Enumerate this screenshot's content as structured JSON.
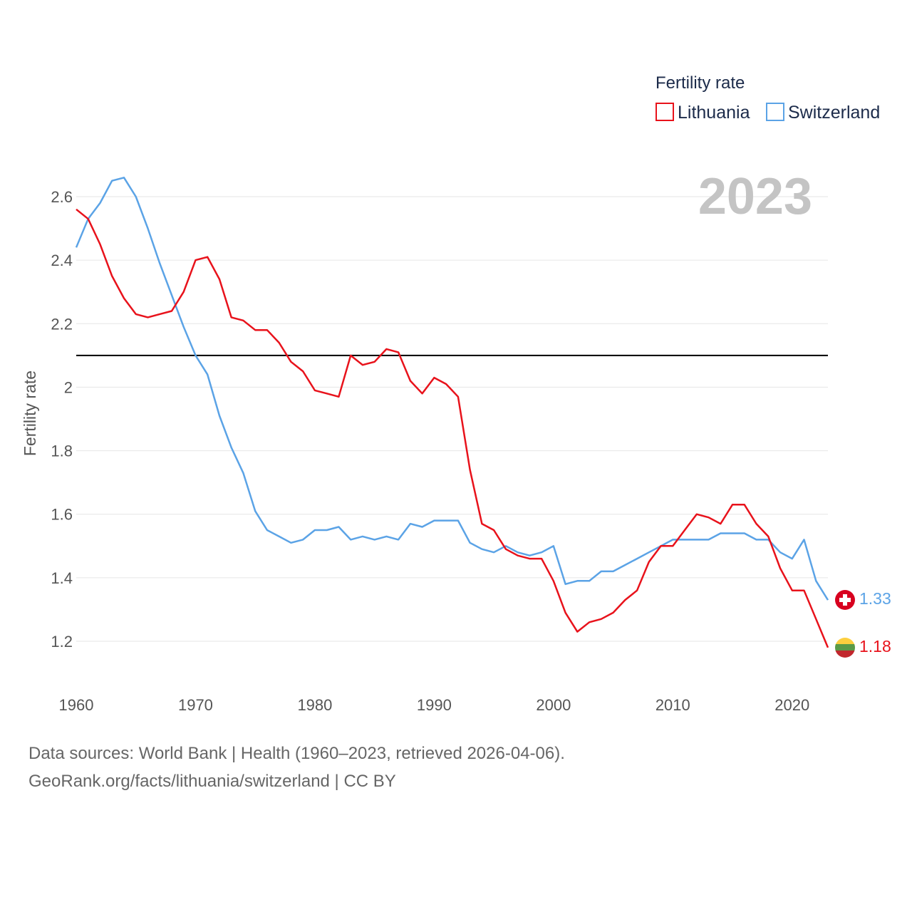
{
  "chart_data": {
    "type": "line",
    "year_label": "2023",
    "legend_title": "Fertility rate",
    "ylabel": "Fertility rate",
    "xlabel": "",
    "xlim": [
      1960,
      2023
    ],
    "ylim": [
      1.1,
      2.7
    ],
    "x_ticks": [
      {
        "value": 1960,
        "label": "1960"
      },
      {
        "value": 1970,
        "label": "1970"
      },
      {
        "value": 1980,
        "label": "1980"
      },
      {
        "value": 1990,
        "label": "1990"
      },
      {
        "value": 2000,
        "label": "2000"
      },
      {
        "value": 2010,
        "label": "2010"
      },
      {
        "value": 2020,
        "label": "2020"
      }
    ],
    "y_ticks": [
      {
        "value": 1.2,
        "label": "1.2"
      },
      {
        "value": 1.4,
        "label": "1.4"
      },
      {
        "value": 1.6,
        "label": "1.6"
      },
      {
        "value": 1.8,
        "label": "1.8"
      },
      {
        "value": 2.0,
        "label": "2"
      },
      {
        "value": 2.2,
        "label": "2.2"
      },
      {
        "value": 2.4,
        "label": "2.4"
      },
      {
        "value": 2.6,
        "label": "2.6"
      }
    ],
    "reference_line": 2.1,
    "x": [
      1960,
      1961,
      1962,
      1963,
      1964,
      1965,
      1966,
      1967,
      1968,
      1969,
      1970,
      1971,
      1972,
      1973,
      1974,
      1975,
      1976,
      1977,
      1978,
      1979,
      1980,
      1981,
      1982,
      1983,
      1984,
      1985,
      1986,
      1987,
      1988,
      1989,
      1990,
      1991,
      1992,
      1993,
      1994,
      1995,
      1996,
      1997,
      1998,
      1999,
      2000,
      2001,
      2002,
      2003,
      2004,
      2005,
      2006,
      2007,
      2008,
      2009,
      2010,
      2011,
      2012,
      2013,
      2014,
      2015,
      2016,
      2017,
      2018,
      2019,
      2020,
      2021,
      2022,
      2023
    ],
    "series": [
      {
        "name": "Lithuania",
        "color": "#e8121b",
        "flag": "lithuania-flag",
        "end_label": "1.18",
        "values": [
          2.56,
          2.53,
          2.45,
          2.35,
          2.28,
          2.23,
          2.22,
          2.23,
          2.24,
          2.3,
          2.4,
          2.41,
          2.34,
          2.22,
          2.21,
          2.18,
          2.18,
          2.14,
          2.08,
          2.05,
          1.99,
          1.98,
          1.97,
          2.1,
          2.07,
          2.08,
          2.12,
          2.11,
          2.02,
          1.98,
          2.03,
          2.01,
          1.97,
          1.74,
          1.57,
          1.55,
          1.49,
          1.47,
          1.46,
          1.46,
          1.39,
          1.29,
          1.23,
          1.26,
          1.27,
          1.29,
          1.33,
          1.36,
          1.45,
          1.5,
          1.5,
          1.55,
          1.6,
          1.59,
          1.57,
          1.63,
          1.63,
          1.57,
          1.53,
          1.43,
          1.36,
          1.36,
          1.27,
          1.18
        ]
      },
      {
        "name": "Switzerland",
        "color": "#5ba3e6",
        "flag": "switzerland-flag",
        "end_label": "1.33",
        "values": [
          2.44,
          2.53,
          2.58,
          2.65,
          2.66,
          2.6,
          2.5,
          2.39,
          2.29,
          2.19,
          2.1,
          2.04,
          1.91,
          1.81,
          1.73,
          1.61,
          1.55,
          1.53,
          1.51,
          1.52,
          1.55,
          1.55,
          1.56,
          1.52,
          1.53,
          1.52,
          1.53,
          1.52,
          1.57,
          1.56,
          1.58,
          1.58,
          1.58,
          1.51,
          1.49,
          1.48,
          1.5,
          1.48,
          1.47,
          1.48,
          1.5,
          1.38,
          1.39,
          1.39,
          1.42,
          1.42,
          1.44,
          1.46,
          1.48,
          1.5,
          1.52,
          1.52,
          1.52,
          1.52,
          1.54,
          1.54,
          1.54,
          1.52,
          1.52,
          1.48,
          1.46,
          1.52,
          1.39,
          1.33
        ]
      }
    ]
  },
  "footer": {
    "sources": "Data sources: World Bank | Health (1960–2023, retrieved 2026-04-06).",
    "credit": "GeoRank.org/facts/lithuania/switzerland | CC BY"
  }
}
